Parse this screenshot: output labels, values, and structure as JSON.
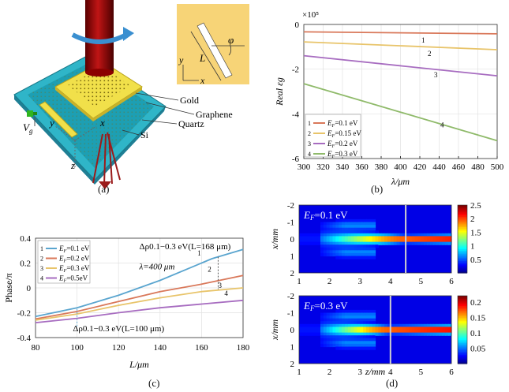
{
  "panel_a": {
    "label": "(a)",
    "inset": {
      "L": "L",
      "phi": "φ",
      "y": "y",
      "x": "x"
    },
    "labels": {
      "gold": "Gold",
      "graphene": "Graphene",
      "quartz": "Quartz",
      "si": "Si",
      "vg_main": "V",
      "vg_sub": "g",
      "y": "y",
      "x": "x",
      "z": "z"
    }
  },
  "panel_b": {
    "label": "(b)"
  },
  "panel_c": {
    "label": "(c)"
  },
  "panel_d": {
    "label": "(d)"
  },
  "chart_data": [
    {
      "id": "b",
      "type": "line",
      "title": "",
      "exponent_label": "×10⁵",
      "xlabel": "λ/μm",
      "ylabel": "Real εg",
      "xlim": [
        300,
        500
      ],
      "ylim": [
        -6,
        0
      ],
      "xticks": [
        300,
        320,
        340,
        360,
        380,
        400,
        420,
        440,
        460,
        480,
        500
      ],
      "yticks": [
        0,
        -2,
        -4,
        -6
      ],
      "legend": [
        "EF=0.1 eV",
        "EF=0.15 eV",
        "EF=0.2 eV",
        "EF=0.3 eV"
      ],
      "legend_numbers": [
        "1",
        "2",
        "3",
        "4"
      ],
      "series": [
        {
          "name": "EF=0.1 eV",
          "number": "1",
          "color": "#d9785a",
          "x": [
            300,
            500
          ],
          "y": [
            -0.33,
            -0.42
          ]
        },
        {
          "name": "EF=0.15 eV",
          "number": "2",
          "color": "#e8c46a",
          "x": [
            300,
            500
          ],
          "y": [
            -0.78,
            -1.13
          ]
        },
        {
          "name": "EF=0.2 eV",
          "number": "3",
          "color": "#a76cc0",
          "x": [
            300,
            500
          ],
          "y": [
            -1.4,
            -2.3
          ]
        },
        {
          "name": "EF=0.3 eV",
          "number": "4",
          "color": "#8fba6a",
          "x": [
            300,
            500
          ],
          "y": [
            -2.65,
            -5.2
          ]
        }
      ]
    },
    {
      "id": "c",
      "type": "line",
      "xlabel": "L/μm",
      "ylabel": "Phase/π",
      "xlim": [
        80,
        180
      ],
      "ylim": [
        -0.4,
        0.4
      ],
      "xticks": [
        80,
        100,
        120,
        140,
        160,
        180
      ],
      "yticks": [
        0.4,
        0.2,
        0,
        -0.2,
        -0.4
      ],
      "ytick_labels": [
        "0.4",
        "0.2",
        "0",
        "-0.2",
        "-0.4"
      ],
      "annotations": [
        "Δρ0.1−0.3 eV(L=168 μm)",
        "λ=400 μm",
        "Δρ0.1−0.3 eV(L=100 μm)"
      ],
      "legend": [
        "EF=0.1 eV",
        "EF=0.2 eV",
        "EF=0.3 eV",
        "EF=0.5eV"
      ],
      "legend_numbers": [
        "1",
        "2",
        "3",
        "4"
      ],
      "series": [
        {
          "name": "EF=0.1 eV",
          "number": "1",
          "color": "#5aa5cf",
          "x": [
            80,
            100,
            120,
            140,
            160,
            165,
            168,
            180
          ],
          "y": [
            -0.23,
            -0.16,
            -0.06,
            0.06,
            0.2,
            0.235,
            0.25,
            0.31
          ]
        },
        {
          "name": "EF=0.2 eV",
          "number": "2",
          "color": "#d9785a",
          "x": [
            80,
            100,
            120,
            140,
            160,
            180
          ],
          "y": [
            -0.25,
            -0.19,
            -0.11,
            -0.03,
            0.03,
            0.1
          ]
        },
        {
          "name": "EF=0.3 eV",
          "number": "3",
          "color": "#e8c46a",
          "x": [
            80,
            100,
            120,
            140,
            160,
            180
          ],
          "y": [
            -0.26,
            -0.21,
            -0.14,
            -0.08,
            -0.03,
            0.0
          ]
        },
        {
          "name": "EF=0.5eV",
          "number": "4",
          "color": "#a76cc0",
          "x": [
            80,
            100,
            120,
            140,
            160,
            180
          ],
          "y": [
            -0.28,
            -0.245,
            -0.2,
            -0.16,
            -0.13,
            -0.1
          ]
        }
      ]
    },
    {
      "id": "d",
      "type": "heatmap",
      "xlabel": "z/mm",
      "ylabel": "x/mm",
      "xlim": [
        1,
        6
      ],
      "ylim": [
        -2,
        2
      ],
      "xticks": [
        1,
        2,
        3,
        4,
        5,
        6
      ],
      "yticks": [
        -2,
        -1,
        0,
        1,
        2
      ],
      "plots": [
        {
          "title": "EF=0.1 eV",
          "focus_z": 4.5,
          "colorbar_ticks": [
            "2.5",
            "2",
            "1.5",
            "1",
            "0.5"
          ],
          "max": 2.5
        },
        {
          "title": "EF=0.3 eV",
          "focus_z": 4.0,
          "colorbar_ticks": [
            "0.2",
            "0.15",
            "0.1",
            "0.05"
          ],
          "max": 0.22
        }
      ]
    }
  ]
}
